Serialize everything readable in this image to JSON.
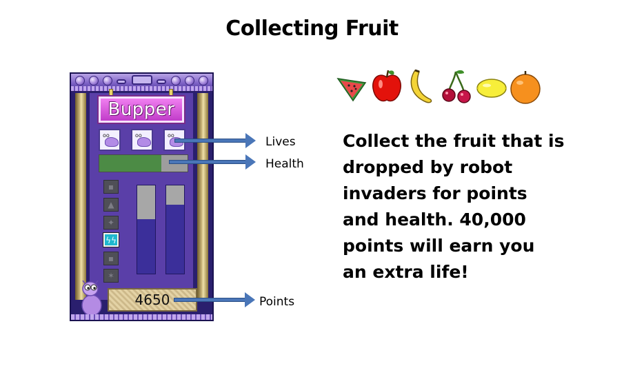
{
  "title": "Collecting Fruit",
  "hud": {
    "player_name": "Bupper",
    "lives": 3,
    "health_fraction": 0.7,
    "points": "4650",
    "meters": [
      {
        "fill_fraction": 0.62
      },
      {
        "fill_fraction": 0.78
      }
    ],
    "weapon_slots": 6,
    "selected_slot": 4
  },
  "callouts": {
    "lives": "Lives",
    "health": "Health",
    "points": "Points"
  },
  "fruits": [
    "watermelon-icon",
    "apple-icon",
    "banana-icon",
    "cherries-icon",
    "lemon-icon",
    "orange-icon"
  ],
  "description": {
    "lines": [
      "Collect the fruit that is",
      "dropped by robot",
      "invaders for points",
      "and health. 40,000",
      "points will earn you",
      "an extra life!"
    ]
  },
  "colors": {
    "arrow": "#4a76b8",
    "health": "#4c8b45",
    "panel": "#2a1f6e",
    "name_plate": "#d64fd9"
  }
}
